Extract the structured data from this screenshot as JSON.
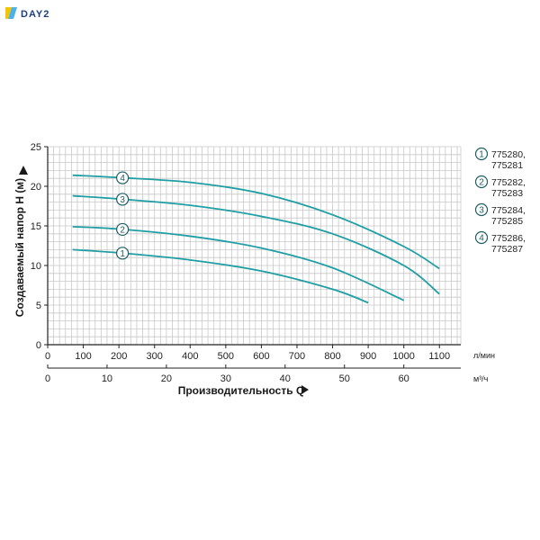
{
  "brand": {
    "name": "DAY2"
  },
  "chart_data": {
    "type": "line",
    "ylabel": "Создаваемый напор H (м)",
    "xlabel": "Производительность Q",
    "ylim": [
      0,
      25
    ],
    "yticks": [
      0,
      5,
      10,
      15,
      20,
      25
    ],
    "xlim": [
      0,
      1100
    ],
    "xticks_primary": [
      0,
      100,
      200,
      300,
      400,
      500,
      600,
      700,
      800,
      900,
      1000,
      1100
    ],
    "x_unit_primary": "л/мин",
    "xticks_secondary": [
      0,
      10,
      20,
      30,
      40,
      50,
      60
    ],
    "x_unit_secondary": "м³/ч",
    "grid": true,
    "legend_position": "right",
    "series": [
      {
        "name": "775280, 775281",
        "badge": "1",
        "legend_lines": [
          "775280,",
          "775281"
        ],
        "x": [
          70,
          200,
          400,
          600,
          800,
          900
        ],
        "y": [
          12.0,
          11.6,
          10.7,
          9.3,
          7.0,
          5.3
        ]
      },
      {
        "name": "775282, 775283",
        "badge": "2",
        "legend_lines": [
          "775282,",
          "775283"
        ],
        "x": [
          70,
          200,
          400,
          600,
          800,
          1000
        ],
        "y": [
          14.9,
          14.6,
          13.7,
          12.2,
          9.7,
          5.6
        ]
      },
      {
        "name": "775284, 775285",
        "badge": "3",
        "legend_lines": [
          "775284,",
          "775285"
        ],
        "x": [
          70,
          200,
          400,
          600,
          800,
          1000,
          1100
        ],
        "y": [
          18.8,
          18.4,
          17.6,
          16.2,
          14.0,
          10.0,
          6.4
        ]
      },
      {
        "name": "775286, 775287",
        "badge": "4",
        "legend_lines": [
          "775286,",
          "775287"
        ],
        "x": [
          70,
          200,
          400,
          600,
          800,
          1000,
          1100
        ],
        "y": [
          21.4,
          21.1,
          20.5,
          19.1,
          16.4,
          12.4,
          9.6
        ]
      }
    ],
    "badge_x": 210,
    "colors": {
      "line": "#1f9ea4",
      "grid": "#c8c8c8",
      "axis": "#222222",
      "badge": "#1f5c64"
    }
  }
}
